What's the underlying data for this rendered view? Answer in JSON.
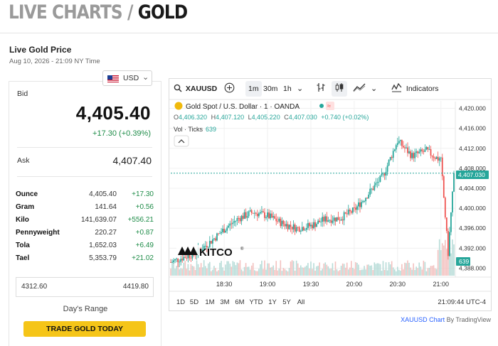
{
  "page": {
    "title_left": "LIVE CHARTS / ",
    "title_right": "GOLD"
  },
  "quote": {
    "heading": "Live Gold Price",
    "timestamp": "Aug 10, 2026 - 21:09 NY Time",
    "currency": "USD",
    "bid_label": "Bid",
    "bid": "4,405.40",
    "change": "+17.30 (+0.39%)",
    "ask_label": "Ask",
    "ask": "4,407.40",
    "units": [
      {
        "unit": "Ounce",
        "price": "4,405.40",
        "change": "+17.30"
      },
      {
        "unit": "Gram",
        "price": "141.64",
        "change": "+0.56"
      },
      {
        "unit": "Kilo",
        "price": "141,639.07",
        "change": "+556.21"
      },
      {
        "unit": "Pennyweight",
        "price": "220.27",
        "change": "+0.87"
      },
      {
        "unit": "Tola",
        "price": "1,652.03",
        "change": "+6.49"
      },
      {
        "unit": "Tael",
        "price": "5,353.79",
        "change": "+21.02"
      }
    ],
    "range_low": "4312.60",
    "range_high": "4419.80",
    "range_label": "Day's Range",
    "cta": "TRADE GOLD TODAY"
  },
  "chart": {
    "symbol": "XAUUSD",
    "intervals": [
      "1m",
      "30m",
      "1h"
    ],
    "active_interval": "1m",
    "indicators_label": "Indicators",
    "series_title": "Gold Spot / U.S. Dollar · 1 · OANDA",
    "ohlc": {
      "o_label": "O",
      "o": "4,406.320",
      "h_label": "H",
      "h": "4,407.120",
      "l_label": "L",
      "l": "4,405.220",
      "c_label": "C",
      "c": "4,407.030",
      "change": "+0.740 (+0.02%)"
    },
    "volume_label": "Vol · Ticks",
    "volume_value": "639",
    "watermark": "KITCO",
    "ranges": [
      "1D",
      "5D",
      "1M",
      "3M",
      "6M",
      "YTD",
      "1Y",
      "5Y",
      "All"
    ],
    "clock": "21:09:44 UTC-4",
    "credit_link": "XAUUSD Chart",
    "credit_by": "By TradingView",
    "colors": {
      "up": "#26a69a",
      "down": "#ef5350",
      "price_line": "#26a69a",
      "volume_badge": "#26a69a"
    }
  },
  "chart_data": {
    "type": "line",
    "series": [
      {
        "name": "Gold Spot / U.S. Dollar",
        "x": [
          "17:53",
          "18:00",
          "18:10",
          "18:20",
          "18:30",
          "18:40",
          "18:50",
          "19:00",
          "19:10",
          "19:20",
          "19:30",
          "19:40",
          "19:50",
          "20:00",
          "20:10",
          "20:20",
          "20:30",
          "20:40",
          "20:50",
          "21:00",
          "21:05",
          "21:09"
        ],
        "values": [
          4389.2,
          4390.0,
          4391.0,
          4393.2,
          4395.8,
          4398.0,
          4399.2,
          4398.5,
          4397.0,
          4396.0,
          4396.5,
          4397.8,
          4398.0,
          4399.6,
          4403.0,
          4406.5,
          4413.5,
          4410.5,
          4411.5,
          4409.5,
          4391.0,
          4407.03
        ]
      }
    ],
    "x_ticks": [
      "18:30",
      "19:00",
      "19:30",
      "20:00",
      "20:30",
      "21:00"
    ],
    "y_ticks": [
      "4,388.000",
      "4,392.000",
      "4,396.000",
      "4,400.000",
      "4,404.000",
      "4,408.000",
      "4,412.000",
      "4,416.000",
      "4,420.000"
    ],
    "ylim": [
      4386.5,
      4421.5
    ],
    "last_price": "4,407.030",
    "volume_last": "639"
  }
}
